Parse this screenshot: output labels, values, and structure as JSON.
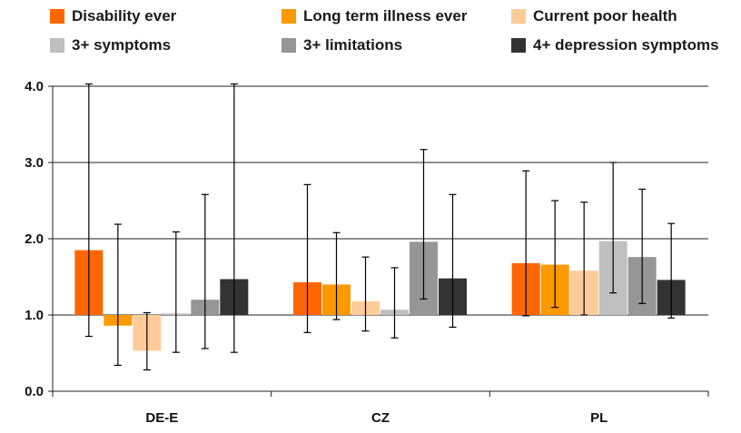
{
  "chart_data": {
    "type": "bar",
    "categories": [
      "DE-E",
      "CZ",
      "PL"
    ],
    "series": [
      {
        "name": "Disability ever",
        "color": "#ff6600",
        "values": [
          1.85,
          1.43,
          1.68
        ],
        "err_low": [
          0.72,
          0.77,
          0.99
        ],
        "err_high": [
          4.03,
          2.71,
          2.89
        ]
      },
      {
        "name": "Long term illness ever",
        "color": "#ff9900",
        "values": [
          0.86,
          1.4,
          1.66
        ],
        "err_low": [
          0.34,
          0.94,
          1.1
        ],
        "err_high": [
          2.19,
          2.08,
          2.5
        ]
      },
      {
        "name": "Current poor health",
        "color": "#ffcc99",
        "values": [
          0.53,
          1.18,
          1.58
        ],
        "err_low": [
          0.28,
          0.79,
          1.0
        ],
        "err_high": [
          1.03,
          1.76,
          2.48
        ]
      },
      {
        "name": "3+ symptoms",
        "color": "#c0c0c0",
        "values": [
          1.02,
          1.07,
          1.97
        ],
        "err_low": [
          0.51,
          0.7,
          1.29
        ],
        "err_high": [
          2.09,
          1.62,
          3.0
        ]
      },
      {
        "name": "3+ limitations",
        "color": "#969696",
        "values": [
          1.2,
          1.96,
          1.76
        ],
        "err_low": [
          0.56,
          1.21,
          1.15
        ],
        "err_high": [
          2.58,
          3.17,
          2.65
        ]
      },
      {
        "name": "4+ depression symptoms",
        "color": "#333333",
        "values": [
          1.47,
          1.48,
          1.46
        ],
        "err_low": [
          0.51,
          0.84,
          0.96
        ],
        "err_high": [
          4.03,
          2.58,
          2.2
        ]
      }
    ],
    "baseline": 1.0,
    "ylim": [
      0,
      4.0
    ],
    "yticks": [
      "0.0",
      "1.0",
      "2.0",
      "3.0",
      "4.0"
    ],
    "grid": true,
    "legend_position": "top"
  }
}
